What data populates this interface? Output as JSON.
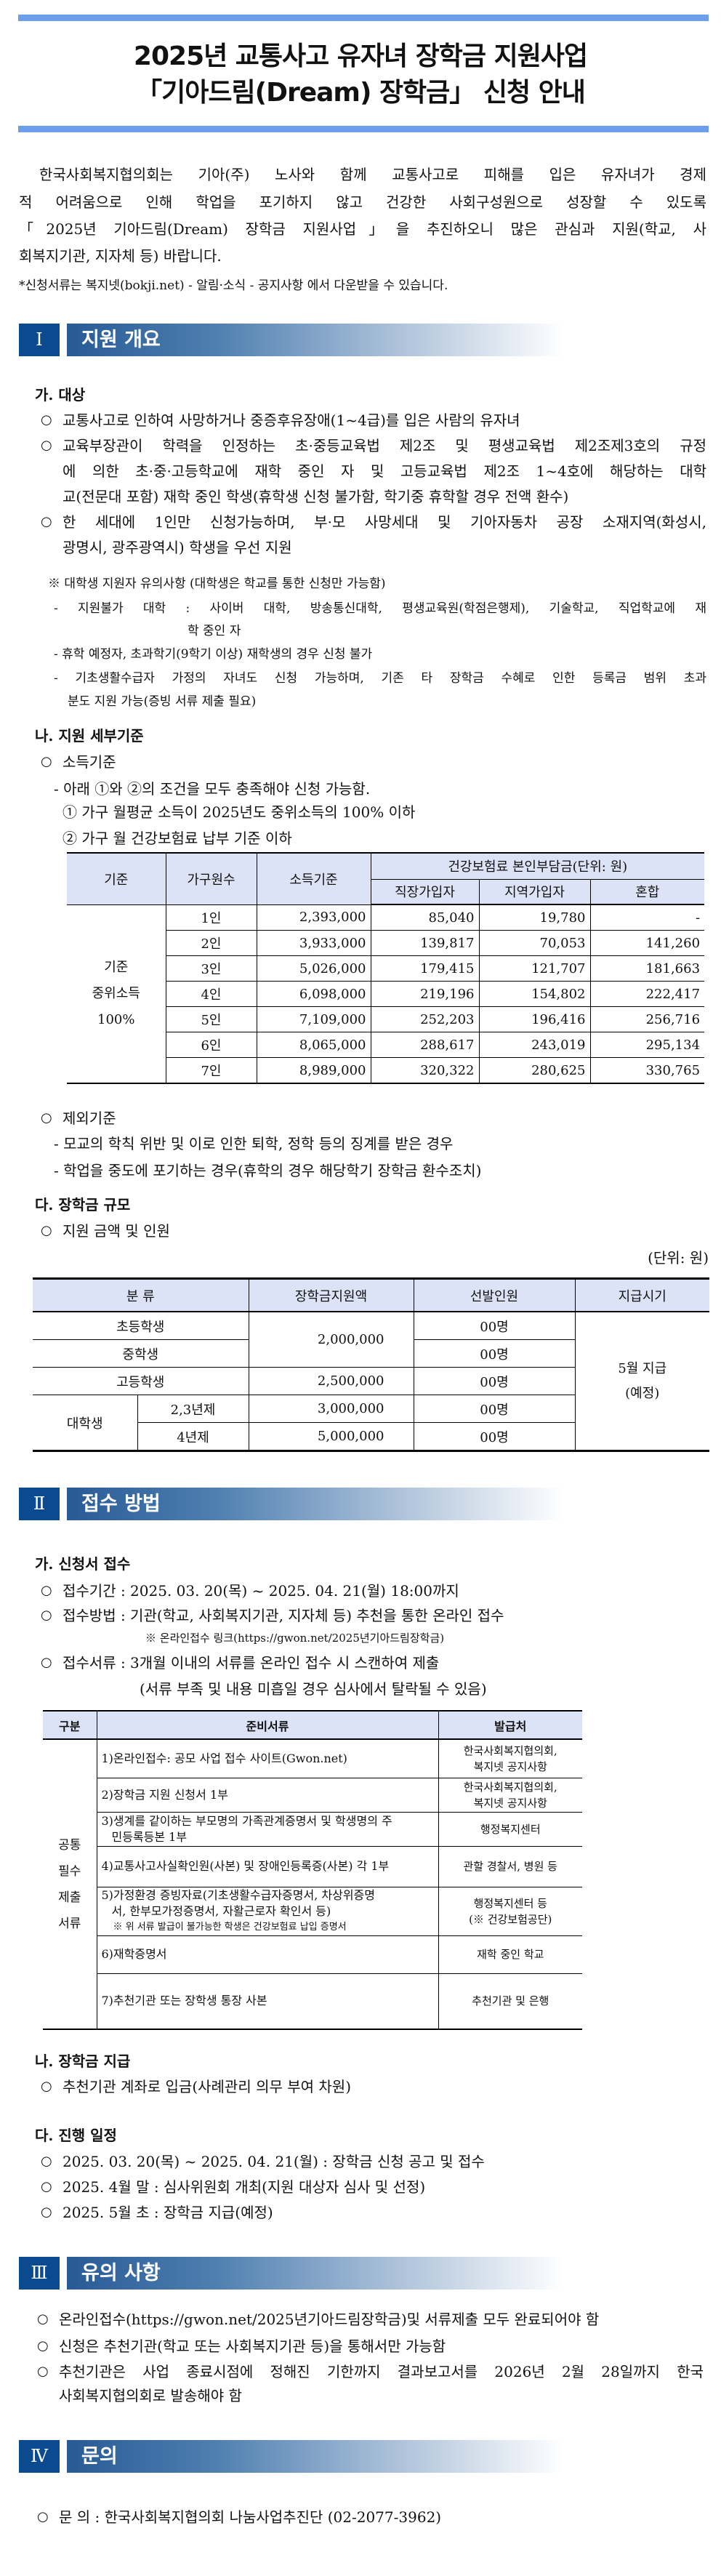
{
  "header": {
    "title_line1": "2025년 교통사고 유자녀 장학금 지원사업",
    "title_line2": "「기아드림(Dream) 장학금」 신청 안내",
    "accent_color": "#6d9eeb"
  },
  "intro": {
    "lines": [
      "한국사회복지협의회는 기아(주) 노사와 함께 교통사고로 피해를 입은 유자녀가 경제",
      "적 어려움으로 인해 학업을 포기하지 않고 건강한 사회구성원으로 성장할 수 있도록",
      "「2025년 기아드림(Dream) 장학금 지원사업」을 추진하오니 많은 관심과 지원(학교, 사",
      "회복지기관, 지자체 등) 바랍니다."
    ],
    "footnote": "*신청서류는 복지넷(bokji.net) - 알림·소식 - 공지사항 에서 다운받을 수 있습니다."
  },
  "sections": [
    {
      "roman": "Ⅰ",
      "title": "지원 개요"
    },
    {
      "roman": "Ⅱ",
      "title": "접수 방법"
    },
    {
      "roman": "Ⅲ",
      "title": "유의 사항"
    },
    {
      "roman": "Ⅳ",
      "title": "문의"
    }
  ],
  "overview": {
    "target_heading": "가. 대상",
    "bullet": "○",
    "target_lines": [
      "교통사고로 인하여 사망하거나 중증후유장애(1~4급)를 입은 사람의 유자녀",
      "교육부장관이 학력을 인정하는 초·중등교육법 제2조 및 평생교육법 제2조제3호의 규정",
      "에 의한 초·중·고등학교에 재학 중인 자 및 고등교육법 제2조 1~4호에 해당하는 대학",
      "교(전문대 포함) 재학 중인 학생(휴학생 신청 불가함, 학기중 휴학할 경우 전액 환수)",
      "한 세대에 1인만 신청가능하며,  부·모 사망세대 및 기아자동차 공장 소재지역(화성시,",
      "광명시, 광주광역시) 학생을 우선 지원"
    ],
    "college_note": "※ 대학생 지원자 유의사항 (대학생은 학교를 통한 신청만 가능함)",
    "college_lines": [
      "- 지원불가 대학 : 사이버 대학, 방송통신대학, 평생교육원(학점은행제), 기술학교, 직업학교에 재",
      "학 중인 자",
      "- 휴학 예정자, 초과학기(9학기 이상) 재학생의 경우 신청 불가",
      "- 기초생활수급자 가정의 자녀도 신청 가능하며, 기존 타 장학금 수혜로 인한 등록금 범위 초과",
      "분도 지원 가능(증빙 서류 제출 필요)"
    ],
    "criteria_heading": "나. 지원 세부기준",
    "income_label": "소득기준",
    "income_intro": "- 아래 ①와 ②의 조건을 모두 충족해야 신청 가능함.",
    "income_cond1": "① 가구 월평균 소득이 2025년도 중위소득의 100% 이하",
    "income_cond2": "② 가구 월 건강보험료 납부 기준 이하",
    "income_table": {
      "headers": {
        "basis": "기준",
        "household": "가구원수",
        "income": "소득기준",
        "insurance_group": "건강보험료 본인부담금(단위: 원)",
        "employee": "직장가입자",
        "regional": "지역가입자",
        "mixed": "혼합"
      },
      "basis_lines": [
        "기준",
        "중위소득",
        "100%"
      ],
      "rows": [
        {
          "household": "1인",
          "income": "2,393,000",
          "employee": "85,040",
          "regional": "19,780",
          "mixed": "-"
        },
        {
          "household": "2인",
          "income": "3,933,000",
          "employee": "139,817",
          "regional": "70,053",
          "mixed": "141,260"
        },
        {
          "household": "3인",
          "income": "5,026,000",
          "employee": "179,415",
          "regional": "121,707",
          "mixed": "181,663"
        },
        {
          "household": "4인",
          "income": "6,098,000",
          "employee": "219,196",
          "regional": "154,802",
          "mixed": "222,417"
        },
        {
          "household": "5인",
          "income": "7,109,000",
          "employee": "252,203",
          "regional": "196,416",
          "mixed": "256,716"
        },
        {
          "household": "6인",
          "income": "8,065,000",
          "employee": "288,617",
          "regional": "243,019",
          "mixed": "295,134"
        },
        {
          "household": "7인",
          "income": "8,989,000",
          "employee": "320,322",
          "regional": "280,625",
          "mixed": "330,765"
        }
      ]
    },
    "exclusion_label": "제외기준",
    "exclusion_lines": [
      "- 모교의 학칙 위반 및 이로 인한 퇴학, 정학 등의 징계를 받은 경우",
      "- 학업을 중도에 포기하는 경우(휴학의 경우 해당학기 장학금 환수조치)"
    ],
    "scale_heading": "다. 장학금 규모",
    "scale_label": "지원 금액 및 인원",
    "unit": "(단위: 원)",
    "scale_table": {
      "headers": {
        "category": "분   류",
        "amount": "장학금지원액",
        "count": "선발인원",
        "timing": "지급시기"
      },
      "elementary": "초등학생",
      "middle": "중학생",
      "high": "고등학생",
      "college": "대학생",
      "college_2_3": "2,3년제",
      "college_4": "4년제",
      "amount_elem_middle": "2,000,000",
      "amount_high": "2,500,000",
      "amount_college_2_3": "3,000,000",
      "amount_college_4": "5,000,000",
      "count": "00명",
      "timing_line1": "5월 지급",
      "timing_line2": "(예정)"
    }
  },
  "application": {
    "receipt_heading": "가. 신청서 접수",
    "period": "접수기간 : 2025. 03. 20(목) ~ 2025. 04. 21(월) 18:00까지",
    "method": "접수방법 : 기관(학교, 사회복지기관, 지자체 등) 추천을 통한 온라인 접수",
    "link_note": "※ 온라인접수 링크(https://gwon.net/2025년기아드림장학금)",
    "documents": "접수서류 : 3개월 이내의 서류를 온라인 접수 시 스캔하여 제출",
    "documents_note": "(서류 부족 및 내용 미흡일 경우 심사에서 탈락될 수 있음)",
    "doc_table": {
      "headers": {
        "group": "구분",
        "docs": "준비서류",
        "issuer": "발급처"
      },
      "group_lines": [
        "공통",
        "필수",
        "제출",
        "서류"
      ],
      "rows": [
        {
          "doc": [
            "1)온라인접수: 공모 사업 접수 사이트(Gwon.net)"
          ],
          "issuer": [
            "한국사회복지협의회,",
            "복지넷 공지사항"
          ]
        },
        {
          "doc": [
            "2)장학금 지원 신청서 1부"
          ],
          "issuer": [
            "한국사회복지협의회,",
            "복지넷 공지사항"
          ]
        },
        {
          "doc": [
            "3)생계를 같이하는 부모명의 가족관계증명서 및 학생명의 주",
            "민등록등본 1부"
          ],
          "issuer": [
            "행정복지센터"
          ]
        },
        {
          "doc": [
            "4)교통사고사실확인원(사본) 및 장애인등록증(사본) 각 1부"
          ],
          "issuer": [
            "관할 경찰서, 병원 등"
          ]
        },
        {
          "doc": [
            "5)가정환경  증빙자료(기초생활수급자증명서,  차상위증명",
            "서, 한부모가정증명서, 자활근로자 확인서 등)"
          ],
          "note": "※ 위 서류 발급이 불가능한 학생은 건강보험료 납입 증명서",
          "issuer": [
            "행정복지센터 등",
            "(※ 건강보험공단)"
          ]
        },
        {
          "doc": [
            "6)재학증명서"
          ],
          "issuer": [
            "재학 중인 학교"
          ]
        },
        {
          "doc": [
            "7)추천기관 또는 장학생 통장 사본"
          ],
          "issuer": [
            "추천기관 및 은행"
          ]
        }
      ]
    },
    "payment_heading": "나. 장학금 지급",
    "payment": "추천기관 계좌로 입금(사례관리 의무 부여 차원)",
    "schedule_heading": "다. 진행 일정",
    "schedule": [
      "2025. 03. 20(목) ~ 2025. 04. 21(월) : 장학금 신청 공고 및 접수",
      "2025. 4월 말 : 심사위원회 개최(지원 대상자 심사 및 선정)",
      "2025. 5월 초 : 장학금 지급(예정)"
    ]
  },
  "notes": {
    "lines": [
      "온라인접수(https://gwon.net/2025년기아드림장학금)및 서류제출 모두 완료되어야 함",
      "신청은 추천기관(학교 또는 사회복지기관 등)을 통해서만 가능함",
      "추천기관은 사업 종료시점에 정해진 기한까지 결과보고서를 2026년 2월 28일까지 한국",
      "사회복지협의회로 발송해야 함"
    ]
  },
  "contact": {
    "line": "문 의 : 한국사회복지협의회   나눔사업추진단 (02-2077-3962)"
  }
}
